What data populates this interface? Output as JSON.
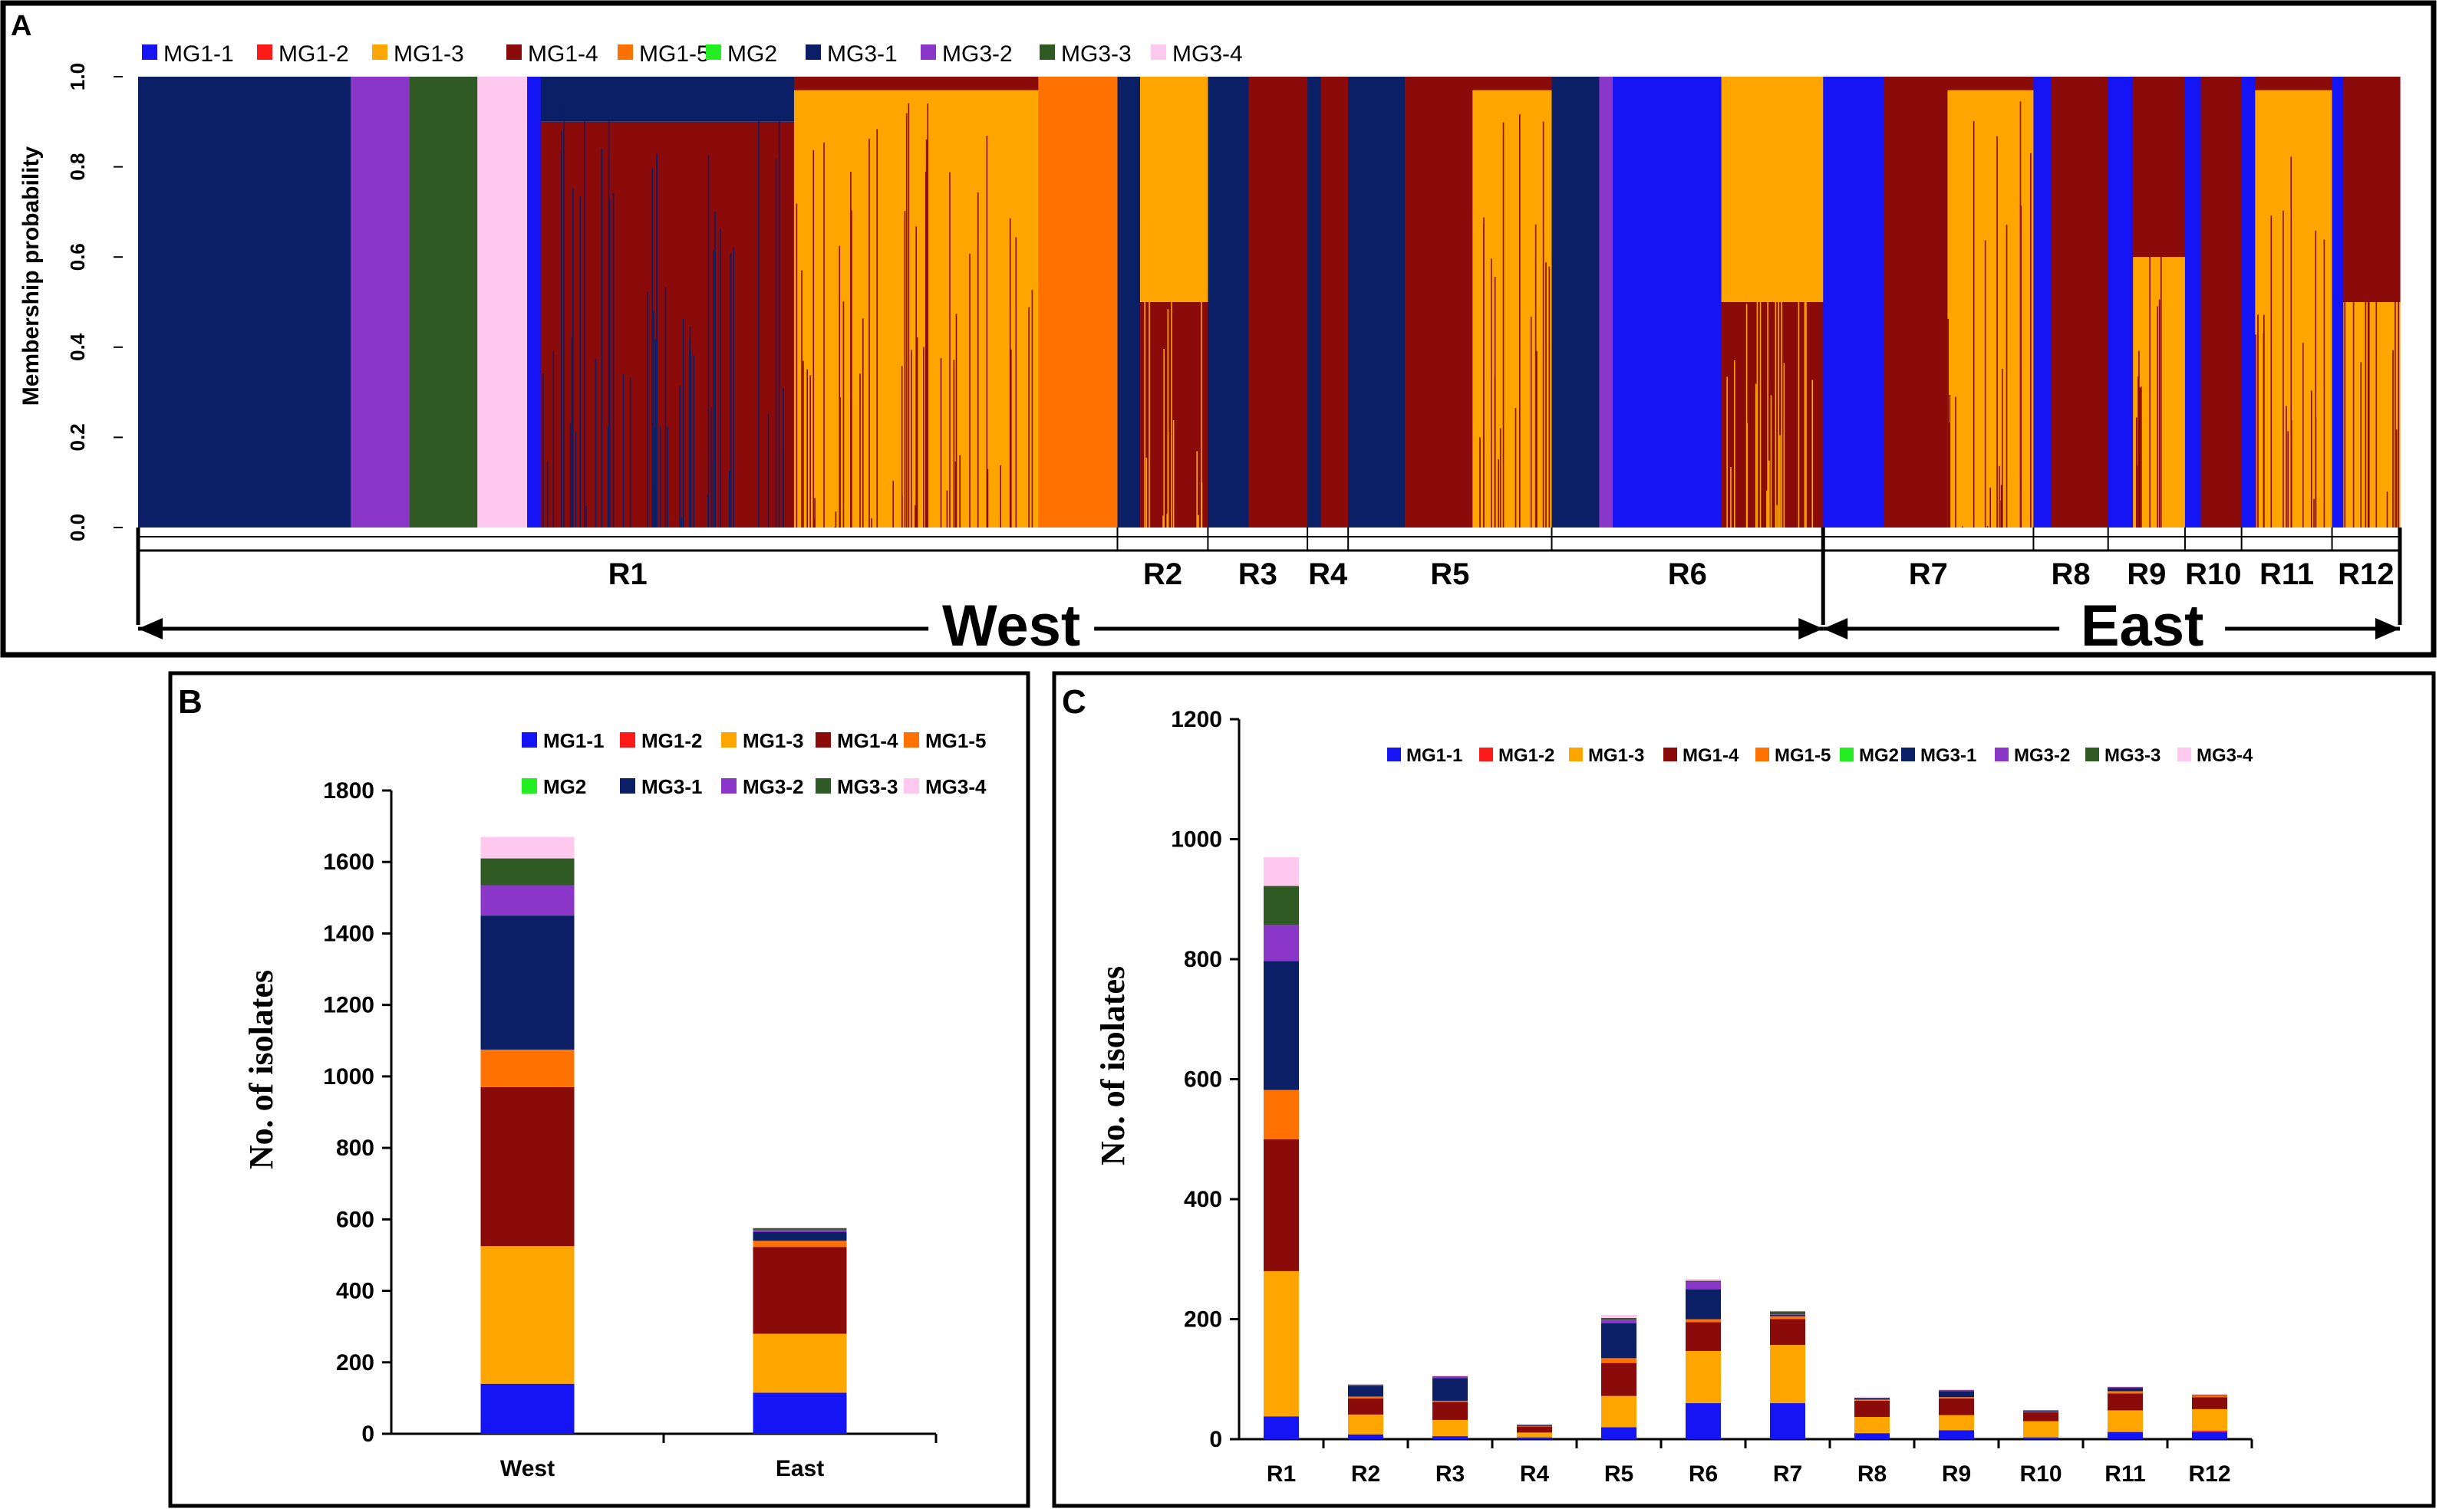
{
  "colors": {
    "MG1-1": "#1414f5",
    "MG1-2": "#ff1a1a",
    "MG1-3": "#ffa500",
    "MG1-4": "#8b0a0a",
    "MG1-5": "#ff7100",
    "MG2": "#22ee22",
    "MG3-1": "#0b1f66",
    "MG3-2": "#8a36c8",
    "MG3-3": "#2f5a24",
    "MG3-4": "#ffc8ee"
  },
  "groups": [
    "MG1-1",
    "MG1-2",
    "MG1-3",
    "MG1-4",
    "MG1-5",
    "MG2",
    "MG3-1",
    "MG3-2",
    "MG3-3",
    "MG3-4"
  ],
  "chart_data": [
    {
      "panel": "A",
      "type": "area",
      "ylabel": "Membership probability",
      "yticks": [
        "0.0",
        "0.2",
        "0.4",
        "0.6",
        "0.8",
        "1.0"
      ],
      "ylim": [
        0,
        1
      ],
      "legend": [
        "MG1-1",
        "MG1-2",
        "MG1-3",
        "MG1-4",
        "MG1-5",
        "MG2",
        "MG3-1",
        "MG3-2",
        "MG3-3",
        "MG3-4"
      ],
      "regions": [
        "R1",
        "R2",
        "R3",
        "R4",
        "R5",
        "R6",
        "R7",
        "R8",
        "R9",
        "R10",
        "R11",
        "R12"
      ],
      "region_bounds": [
        0,
        0.433,
        0.473,
        0.517,
        0.535,
        0.625,
        0.745,
        0.838,
        0.871,
        0.905,
        0.93,
        0.97,
        1.0
      ],
      "areas": [
        "West",
        "East"
      ],
      "area_split_region": 6,
      "segments": [
        {
          "start": 0.0,
          "end": 0.094,
          "groups": {
            "MG3-1": 1.0
          }
        },
        {
          "start": 0.094,
          "end": 0.12,
          "groups": {
            "MG3-2": 1.0
          }
        },
        {
          "start": 0.12,
          "end": 0.15,
          "groups": {
            "MG3-3": 1.0
          }
        },
        {
          "start": 0.15,
          "end": 0.172,
          "groups": {
            "MG3-4": 1.0
          }
        },
        {
          "start": 0.172,
          "end": 0.178,
          "groups": {
            "MG1-1": 1.0
          }
        },
        {
          "start": 0.178,
          "end": 0.29,
          "groups": {
            "MG1-4": 0.9,
            "MG3-1": 0.1
          }
        },
        {
          "start": 0.29,
          "end": 0.398,
          "groups": {
            "MG1-3": 0.97,
            "MG1-4": 0.03
          }
        },
        {
          "start": 0.398,
          "end": 0.433,
          "groups": {
            "MG1-5": 1.0
          }
        },
        {
          "start": 0.433,
          "end": 0.443,
          "groups": {
            "MG3-1": 1.0
          }
        },
        {
          "start": 0.443,
          "end": 0.473,
          "groups": {
            "MG1-4": 0.5,
            "MG1-3": 0.5
          }
        },
        {
          "start": 0.473,
          "end": 0.491,
          "groups": {
            "MG3-1": 1.0
          }
        },
        {
          "start": 0.491,
          "end": 0.517,
          "groups": {
            "MG1-4": 1.0
          }
        },
        {
          "start": 0.517,
          "end": 0.523,
          "groups": {
            "MG3-1": 1.0
          }
        },
        {
          "start": 0.523,
          "end": 0.535,
          "groups": {
            "MG1-4": 1.0
          }
        },
        {
          "start": 0.535,
          "end": 0.56,
          "groups": {
            "MG3-1": 1.0
          }
        },
        {
          "start": 0.56,
          "end": 0.59,
          "groups": {
            "MG1-4": 1.0
          }
        },
        {
          "start": 0.59,
          "end": 0.625,
          "groups": {
            "MG1-3": 0.97,
            "MG1-4": 0.03
          }
        },
        {
          "start": 0.625,
          "end": 0.646,
          "groups": {
            "MG3-1": 1.0
          }
        },
        {
          "start": 0.646,
          "end": 0.652,
          "groups": {
            "MG3-2": 1.0
          }
        },
        {
          "start": 0.652,
          "end": 0.7,
          "groups": {
            "MG1-1": 1.0
          }
        },
        {
          "start": 0.7,
          "end": 0.745,
          "groups": {
            "MG1-4": 0.5,
            "MG1-3": 0.5
          }
        },
        {
          "start": 0.745,
          "end": 0.772,
          "groups": {
            "MG1-1": 1.0
          }
        },
        {
          "start": 0.772,
          "end": 0.8,
          "groups": {
            "MG1-4": 1.0
          }
        },
        {
          "start": 0.8,
          "end": 0.838,
          "groups": {
            "MG1-3": 0.97,
            "MG1-4": 0.03
          }
        },
        {
          "start": 0.838,
          "end": 0.846,
          "groups": {
            "MG1-1": 1.0
          }
        },
        {
          "start": 0.846,
          "end": 0.871,
          "groups": {
            "MG1-4": 1.0
          }
        },
        {
          "start": 0.871,
          "end": 0.882,
          "groups": {
            "MG1-1": 1.0
          }
        },
        {
          "start": 0.882,
          "end": 0.905,
          "groups": {
            "MG1-3": 0.6,
            "MG1-4": 0.4
          }
        },
        {
          "start": 0.905,
          "end": 0.912,
          "groups": {
            "MG1-1": 1.0
          }
        },
        {
          "start": 0.912,
          "end": 0.93,
          "groups": {
            "MG1-4": 1.0
          }
        },
        {
          "start": 0.93,
          "end": 0.936,
          "groups": {
            "MG1-1": 1.0
          }
        },
        {
          "start": 0.936,
          "end": 0.97,
          "groups": {
            "MG1-3": 0.97,
            "MG1-4": 0.03
          }
        },
        {
          "start": 0.97,
          "end": 0.975,
          "groups": {
            "MG1-1": 1.0
          }
        },
        {
          "start": 0.975,
          "end": 1.0,
          "groups": {
            "MG1-3": 0.5,
            "MG1-4": 0.5
          }
        }
      ]
    },
    {
      "panel": "B",
      "type": "bar",
      "stacked": true,
      "ylabel": "No. of isolates",
      "ylim": [
        0,
        1800
      ],
      "yticks": [
        0,
        200,
        400,
        600,
        800,
        1000,
        1200,
        1400,
        1600,
        1800
      ],
      "categories": [
        "West",
        "East"
      ],
      "legend_rows": [
        [
          "MG1-1",
          "MG1-2",
          "MG1-3",
          "MG1-4",
          "MG1-5"
        ],
        [
          "MG2",
          "MG3-1",
          "MG3-2",
          "MG3-3",
          "MG3-4"
        ]
      ],
      "series": [
        {
          "name": "MG1-1",
          "values": [
            140,
            115
          ]
        },
        {
          "name": "MG1-2",
          "values": [
            0,
            0
          ]
        },
        {
          "name": "MG1-3",
          "values": [
            385,
            165
          ]
        },
        {
          "name": "MG1-4",
          "values": [
            445,
            243
          ]
        },
        {
          "name": "MG1-5",
          "values": [
            105,
            17
          ]
        },
        {
          "name": "MG2",
          "values": [
            0,
            0
          ]
        },
        {
          "name": "MG3-1",
          "values": [
            375,
            25
          ]
        },
        {
          "name": "MG3-2",
          "values": [
            85,
            5
          ]
        },
        {
          "name": "MG3-3",
          "values": [
            75,
            5
          ]
        },
        {
          "name": "MG3-4",
          "values": [
            60,
            3
          ]
        }
      ]
    },
    {
      "panel": "C",
      "type": "bar",
      "stacked": true,
      "ylabel": "No. of isolates",
      "ylim": [
        0,
        1200
      ],
      "yticks": [
        0,
        200,
        400,
        600,
        800,
        1000,
        1200
      ],
      "categories": [
        "R1",
        "R2",
        "R3",
        "R4",
        "R5",
        "R6",
        "R7",
        "R8",
        "R9",
        "R10",
        "R11",
        "R12"
      ],
      "legend": [
        "MG1-1",
        "MG1-2",
        "MG1-3",
        "MG1-4",
        "MG1-5",
        "MG2",
        "MG3-1",
        "MG3-2",
        "MG3-3",
        "MG3-4"
      ],
      "series": [
        {
          "name": "MG1-1",
          "values": [
            38,
            8,
            5,
            3,
            20,
            60,
            60,
            10,
            15,
            3,
            12,
            12
          ]
        },
        {
          "name": "MG1-2",
          "values": [
            0,
            0,
            0,
            0,
            0,
            0,
            0,
            0,
            0,
            0,
            0,
            2
          ]
        },
        {
          "name": "MG1-3",
          "values": [
            242,
            33,
            27,
            8,
            52,
            87,
            97,
            27,
            25,
            27,
            36,
            36
          ]
        },
        {
          "name": "MG1-4",
          "values": [
            220,
            27,
            30,
            10,
            55,
            48,
            43,
            27,
            28,
            15,
            28,
            20
          ]
        },
        {
          "name": "MG1-5",
          "values": [
            82,
            3,
            2,
            1,
            8,
            5,
            5,
            2,
            2,
            1,
            4,
            3
          ]
        },
        {
          "name": "MG2",
          "values": [
            0,
            0,
            0,
            0,
            0,
            0,
            0,
            0,
            0,
            0,
            0,
            0
          ]
        },
        {
          "name": "MG3-1",
          "values": [
            215,
            18,
            38,
            2,
            58,
            50,
            2,
            2,
            10,
            2,
            5,
            1
          ]
        },
        {
          "name": "MG3-2",
          "values": [
            60,
            1,
            2,
            0,
            6,
            12,
            1,
            0,
            1,
            0,
            1,
            0
          ]
        },
        {
          "name": "MG3-3",
          "values": [
            65,
            1,
            1,
            0,
            3,
            2,
            5,
            1,
            1,
            0,
            1,
            0
          ]
        },
        {
          "name": "MG3-4",
          "values": [
            48,
            1,
            1,
            0,
            5,
            3,
            1,
            1,
            1,
            0,
            1,
            1
          ]
        }
      ]
    }
  ],
  "panel_labels": [
    "A",
    "B",
    "C"
  ]
}
